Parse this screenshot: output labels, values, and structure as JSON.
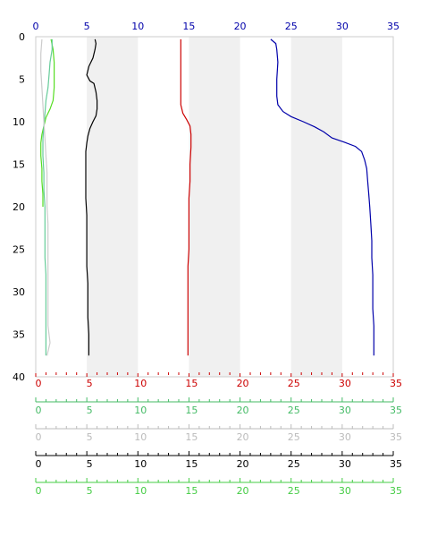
{
  "chart_data": {
    "type": "line",
    "y_axis": {
      "ticks": [
        "0",
        "5",
        "10",
        "15",
        "20",
        "25",
        "30",
        "35",
        "40"
      ],
      "range": [
        0,
        40
      ],
      "inverted": true
    },
    "x_range": [
      0,
      35
    ],
    "top_axis": {
      "ticks": [
        "0",
        "5",
        "10",
        "15",
        "20",
        "25",
        "30",
        "35"
      ],
      "color": "#0000aa"
    },
    "bottom_axes": [
      {
        "ticks": [
          "0",
          "5",
          "10",
          "15",
          "20",
          "25",
          "30",
          "35"
        ],
        "color": "#cc0000",
        "minor": true
      },
      {
        "ticks": [
          "0",
          "5",
          "10",
          "15",
          "20",
          "25",
          "30",
          "35"
        ],
        "color": "#44bb66",
        "minor": true
      },
      {
        "ticks": [
          "0",
          "5",
          "10",
          "15",
          "20",
          "25",
          "30",
          "35"
        ],
        "color": "#bbbbbb",
        "minor": true
      },
      {
        "ticks": [
          "0",
          "5",
          "10",
          "15",
          "20",
          "25",
          "30",
          "35"
        ],
        "color": "#000000",
        "minor": true
      },
      {
        "ticks": [
          "0",
          "5",
          "10",
          "15",
          "20",
          "25",
          "30",
          "35"
        ],
        "color": "#44cc44",
        "minor": true
      }
    ],
    "shaded_bands": [
      [
        5,
        10
      ],
      [
        15,
        20
      ],
      [
        25,
        30
      ]
    ],
    "series": [
      {
        "color": "#0000aa",
        "points": [
          [
            23.0,
            0.3
          ],
          [
            23.5,
            0.8
          ],
          [
            23.6,
            1.5
          ],
          [
            23.7,
            3
          ],
          [
            23.6,
            5
          ],
          [
            23.6,
            7
          ],
          [
            23.7,
            8.0
          ],
          [
            24.2,
            8.8
          ],
          [
            25.0,
            9.4
          ],
          [
            26.2,
            10.0
          ],
          [
            27.3,
            10.6
          ],
          [
            28.2,
            11.2
          ],
          [
            29.0,
            11.9
          ],
          [
            30.2,
            12.4
          ],
          [
            31.3,
            12.9
          ],
          [
            31.9,
            13.5
          ],
          [
            32.2,
            14.5
          ],
          [
            32.4,
            15.5
          ],
          [
            32.5,
            17
          ],
          [
            32.6,
            18.5
          ],
          [
            32.7,
            20
          ],
          [
            32.8,
            22
          ],
          [
            32.9,
            24
          ],
          [
            32.9,
            26
          ],
          [
            33.0,
            28
          ],
          [
            33.0,
            30
          ],
          [
            33.0,
            32
          ],
          [
            33.1,
            34
          ],
          [
            33.1,
            36
          ],
          [
            33.1,
            37.5
          ]
        ]
      },
      {
        "color": "#cc0000",
        "points": [
          [
            14.2,
            0.3
          ],
          [
            14.2,
            2
          ],
          [
            14.2,
            4
          ],
          [
            14.2,
            6
          ],
          [
            14.2,
            8
          ],
          [
            14.4,
            9.0
          ],
          [
            14.8,
            9.8
          ],
          [
            15.1,
            10.5
          ],
          [
            15.2,
            11.5
          ],
          [
            15.2,
            13
          ],
          [
            15.1,
            15
          ],
          [
            15.1,
            17
          ],
          [
            15.0,
            19
          ],
          [
            15.0,
            21
          ],
          [
            15.0,
            23
          ],
          [
            15.0,
            25
          ],
          [
            14.9,
            27
          ],
          [
            14.9,
            29
          ],
          [
            14.9,
            31
          ],
          [
            14.9,
            33
          ],
          [
            14.9,
            35
          ],
          [
            14.9,
            37.5
          ]
        ]
      },
      {
        "color": "#000000",
        "points": [
          [
            5.8,
            0.3
          ],
          [
            5.9,
            0.8
          ],
          [
            5.8,
            1.5
          ],
          [
            5.6,
            2.5
          ],
          [
            5.2,
            3.5
          ],
          [
            5.0,
            4.5
          ],
          [
            5.3,
            5.2
          ],
          [
            5.7,
            5.5
          ],
          [
            5.9,
            6.5
          ],
          [
            6.0,
            7.5
          ],
          [
            6.0,
            8.5
          ],
          [
            5.9,
            9.3
          ],
          [
            5.6,
            10.0
          ],
          [
            5.3,
            10.8
          ],
          [
            5.1,
            11.7
          ],
          [
            5.0,
            12.5
          ],
          [
            4.9,
            13.5
          ],
          [
            4.9,
            15
          ],
          [
            4.9,
            17
          ],
          [
            4.9,
            19
          ],
          [
            5.0,
            21
          ],
          [
            5.0,
            23
          ],
          [
            5.0,
            25
          ],
          [
            5.0,
            27
          ],
          [
            5.1,
            29
          ],
          [
            5.1,
            31
          ],
          [
            5.1,
            33
          ],
          [
            5.2,
            35
          ],
          [
            5.2,
            37.5
          ]
        ]
      },
      {
        "color": "#55dd22",
        "points": [
          [
            1.5,
            0.3
          ],
          [
            1.7,
            1.5
          ],
          [
            1.8,
            3
          ],
          [
            1.8,
            4.5
          ],
          [
            1.8,
            6
          ],
          [
            1.7,
            7.5
          ],
          [
            1.4,
            8.5
          ],
          [
            1.0,
            9.5
          ],
          [
            0.8,
            10.5
          ],
          [
            0.6,
            11.5
          ],
          [
            0.5,
            12.5
          ],
          [
            0.5,
            14
          ],
          [
            0.6,
            15.5
          ],
          [
            0.6,
            17
          ],
          [
            0.7,
            18.5
          ],
          [
            0.7,
            20
          ]
        ]
      },
      {
        "color": "#66cc99",
        "points": [
          [
            1.6,
            0.3
          ],
          [
            1.6,
            1.5
          ],
          [
            1.4,
            3
          ],
          [
            1.3,
            4.5
          ],
          [
            1.2,
            6
          ],
          [
            1.0,
            7.5
          ],
          [
            0.9,
            9
          ],
          [
            0.8,
            10.5
          ],
          [
            0.7,
            12
          ],
          [
            0.7,
            14
          ],
          [
            0.8,
            16
          ],
          [
            0.8,
            18
          ],
          [
            0.9,
            20
          ],
          [
            0.9,
            22
          ],
          [
            0.9,
            24
          ],
          [
            0.9,
            26
          ],
          [
            1.0,
            28
          ],
          [
            1.0,
            30
          ],
          [
            1.0,
            32
          ],
          [
            1.0,
            34
          ],
          [
            1.0,
            36
          ],
          [
            1.0,
            37.5
          ]
        ]
      },
      {
        "color": "#cccccc",
        "points": [
          [
            0.6,
            0.3
          ],
          [
            0.5,
            2
          ],
          [
            0.5,
            4
          ],
          [
            0.6,
            6
          ],
          [
            0.7,
            8
          ],
          [
            0.8,
            10
          ],
          [
            0.9,
            12
          ],
          [
            1.0,
            14
          ],
          [
            1.1,
            16
          ],
          [
            1.1,
            18
          ],
          [
            1.1,
            20
          ],
          [
            1.2,
            22
          ],
          [
            1.2,
            24
          ],
          [
            1.2,
            26
          ],
          [
            1.2,
            28
          ],
          [
            1.2,
            30
          ],
          [
            1.2,
            32
          ],
          [
            1.2,
            34
          ],
          [
            1.4,
            36
          ],
          [
            1.1,
            37.5
          ]
        ]
      }
    ]
  }
}
